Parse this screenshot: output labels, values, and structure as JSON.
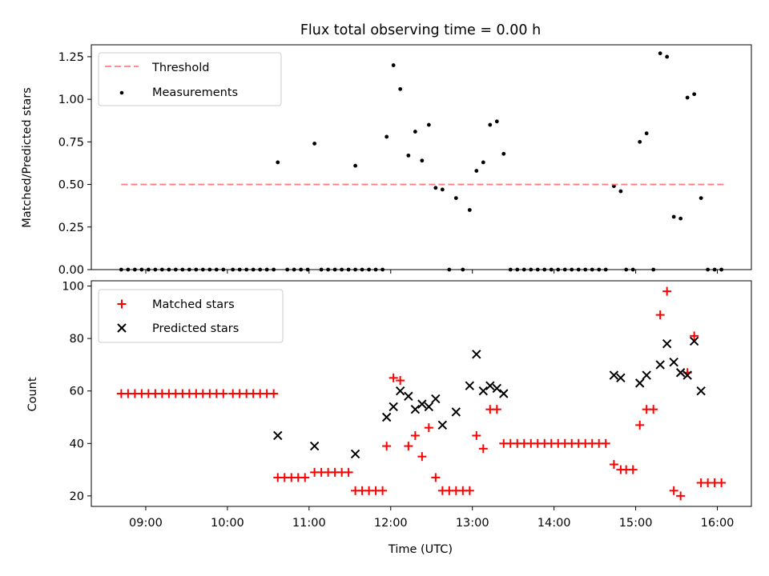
{
  "chart_data": [
    {
      "type": "scatter",
      "title": "Flux total observing time = 0.00 h",
      "ylabel": "Matched/Predicted stars",
      "xlabel": "",
      "xlim": [
        "08:20",
        "16:25"
      ],
      "ylim": [
        0,
        1.32
      ],
      "yticks": [
        0.0,
        0.25,
        0.5,
        0.75,
        1.0,
        1.25
      ],
      "yticklabels": [
        "0.00",
        "0.25",
        "0.50",
        "0.75",
        "1.00",
        "1.25"
      ],
      "grid": false,
      "legend": "top-left",
      "threshold": {
        "name": "Threshold",
        "value": 0.5,
        "x": [
          "08:42",
          "16:05"
        ],
        "color": "#ff7f7f",
        "style": "dashed"
      },
      "series": [
        {
          "name": "Measurements",
          "color": "#000000",
          "marker": "dot",
          "points": [
            [
              "08:42",
              0
            ],
            [
              "08:47",
              0
            ],
            [
              "08:52",
              0
            ],
            [
              "08:57",
              0
            ],
            [
              "09:02",
              0
            ],
            [
              "09:07",
              0
            ],
            [
              "09:12",
              0
            ],
            [
              "09:17",
              0
            ],
            [
              "09:22",
              0
            ],
            [
              "09:27",
              0
            ],
            [
              "09:32",
              0
            ],
            [
              "09:37",
              0
            ],
            [
              "09:42",
              0
            ],
            [
              "09:47",
              0
            ],
            [
              "09:52",
              0
            ],
            [
              "09:57",
              0
            ],
            [
              "10:04",
              0
            ],
            [
              "10:09",
              0
            ],
            [
              "10:14",
              0
            ],
            [
              "10:19",
              0
            ],
            [
              "10:24",
              0
            ],
            [
              "10:29",
              0
            ],
            [
              "10:34",
              0
            ],
            [
              "10:37",
              0.63
            ],
            [
              "10:44",
              0
            ],
            [
              "10:49",
              0
            ],
            [
              "10:54",
              0
            ],
            [
              "10:59",
              0
            ],
            [
              "11:04",
              0.74
            ],
            [
              "11:09",
              0
            ],
            [
              "11:14",
              0
            ],
            [
              "11:19",
              0
            ],
            [
              "11:24",
              0
            ],
            [
              "11:29",
              0
            ],
            [
              "11:34",
              0
            ],
            [
              "11:34",
              0.61
            ],
            [
              "11:39",
              0
            ],
            [
              "11:44",
              0
            ],
            [
              "11:49",
              0
            ],
            [
              "11:54",
              0
            ],
            [
              "11:57",
              0.78
            ],
            [
              "12:02",
              1.2
            ],
            [
              "12:07",
              1.06
            ],
            [
              "12:13",
              0.67
            ],
            [
              "12:18",
              0.81
            ],
            [
              "12:23",
              0.64
            ],
            [
              "12:28",
              0.85
            ],
            [
              "12:33",
              0.48
            ],
            [
              "12:38",
              0.47
            ],
            [
              "12:43",
              0
            ],
            [
              "12:48",
              0.42
            ],
            [
              "12:53",
              0
            ],
            [
              "12:58",
              0.35
            ],
            [
              "13:03",
              0.58
            ],
            [
              "13:08",
              0.63
            ],
            [
              "13:13",
              0.85
            ],
            [
              "13:18",
              0.87
            ],
            [
              "13:23",
              0.68
            ],
            [
              "13:28",
              0
            ],
            [
              "13:33",
              0
            ],
            [
              "13:38",
              0
            ],
            [
              "13:43",
              0
            ],
            [
              "13:48",
              0
            ],
            [
              "13:53",
              0
            ],
            [
              "13:58",
              0
            ],
            [
              "14:03",
              0
            ],
            [
              "14:08",
              0
            ],
            [
              "14:13",
              0
            ],
            [
              "14:18",
              0
            ],
            [
              "14:23",
              0
            ],
            [
              "14:28",
              0
            ],
            [
              "14:33",
              0
            ],
            [
              "14:38",
              0
            ],
            [
              "14:44",
              0.49
            ],
            [
              "14:49",
              0.46
            ],
            [
              "14:53",
              0
            ],
            [
              "14:58",
              0
            ],
            [
              "15:03",
              0.75
            ],
            [
              "15:08",
              0.8
            ],
            [
              "15:13",
              0
            ],
            [
              "15:18",
              1.27
            ],
            [
              "15:23",
              1.25
            ],
            [
              "15:28",
              0.31
            ],
            [
              "15:33",
              0.3
            ],
            [
              "15:38",
              1.01
            ],
            [
              "15:43",
              1.03
            ],
            [
              "15:48",
              0.42
            ],
            [
              "15:53",
              0
            ],
            [
              "15:58",
              0
            ],
            [
              "16:03",
              0
            ]
          ]
        }
      ]
    },
    {
      "type": "scatter",
      "title": "",
      "ylabel": "Count",
      "xlabel": "Time (UTC)",
      "xlim": [
        "08:20",
        "16:25"
      ],
      "ylim": [
        16,
        102
      ],
      "yticks": [
        20,
        40,
        60,
        80,
        100
      ],
      "yticklabels": [
        "20",
        "40",
        "60",
        "80",
        "100"
      ],
      "xticks": [
        "09:00",
        "10:00",
        "11:00",
        "12:00",
        "13:00",
        "14:00",
        "15:00",
        "16:00"
      ],
      "grid": false,
      "legend": "top-left",
      "series": [
        {
          "name": "Matched stars",
          "color": "#ff0000",
          "marker": "plus",
          "points": [
            [
              "08:42",
              59
            ],
            [
              "08:47",
              59
            ],
            [
              "08:52",
              59
            ],
            [
              "08:57",
              59
            ],
            [
              "09:02",
              59
            ],
            [
              "09:07",
              59
            ],
            [
              "09:12",
              59
            ],
            [
              "09:17",
              59
            ],
            [
              "09:22",
              59
            ],
            [
              "09:27",
              59
            ],
            [
              "09:32",
              59
            ],
            [
              "09:37",
              59
            ],
            [
              "09:42",
              59
            ],
            [
              "09:47",
              59
            ],
            [
              "09:52",
              59
            ],
            [
              "09:57",
              59
            ],
            [
              "10:04",
              59
            ],
            [
              "10:09",
              59
            ],
            [
              "10:14",
              59
            ],
            [
              "10:19",
              59
            ],
            [
              "10:24",
              59
            ],
            [
              "10:29",
              59
            ],
            [
              "10:34",
              59
            ],
            [
              "10:37",
              27
            ],
            [
              "10:42",
              27
            ],
            [
              "10:47",
              27
            ],
            [
              "10:52",
              27
            ],
            [
              "10:57",
              27
            ],
            [
              "11:04",
              29
            ],
            [
              "11:09",
              29
            ],
            [
              "11:14",
              29
            ],
            [
              "11:19",
              29
            ],
            [
              "11:24",
              29
            ],
            [
              "11:29",
              29
            ],
            [
              "11:34",
              22
            ],
            [
              "11:39",
              22
            ],
            [
              "11:44",
              22
            ],
            [
              "11:49",
              22
            ],
            [
              "11:54",
              22
            ],
            [
              "11:57",
              39
            ],
            [
              "12:02",
              65
            ],
            [
              "12:07",
              64
            ],
            [
              "12:13",
              39
            ],
            [
              "12:18",
              43
            ],
            [
              "12:23",
              35
            ],
            [
              "12:28",
              46
            ],
            [
              "12:33",
              27
            ],
            [
              "12:38",
              22
            ],
            [
              "12:43",
              22
            ],
            [
              "12:48",
              22
            ],
            [
              "12:53",
              22
            ],
            [
              "12:58",
              22
            ],
            [
              "13:03",
              43
            ],
            [
              "13:08",
              38
            ],
            [
              "13:13",
              53
            ],
            [
              "13:18",
              53
            ],
            [
              "13:23",
              40
            ],
            [
              "13:28",
              40
            ],
            [
              "13:33",
              40
            ],
            [
              "13:38",
              40
            ],
            [
              "13:43",
              40
            ],
            [
              "13:48",
              40
            ],
            [
              "13:53",
              40
            ],
            [
              "13:58",
              40
            ],
            [
              "14:03",
              40
            ],
            [
              "14:08",
              40
            ],
            [
              "14:13",
              40
            ],
            [
              "14:18",
              40
            ],
            [
              "14:23",
              40
            ],
            [
              "14:28",
              40
            ],
            [
              "14:33",
              40
            ],
            [
              "14:38",
              40
            ],
            [
              "14:44",
              32
            ],
            [
              "14:49",
              30
            ],
            [
              "14:53",
              30
            ],
            [
              "14:58",
              30
            ],
            [
              "15:03",
              47
            ],
            [
              "15:08",
              53
            ],
            [
              "15:13",
              53
            ],
            [
              "15:18",
              89
            ],
            [
              "15:23",
              98
            ],
            [
              "15:28",
              22
            ],
            [
              "15:33",
              20
            ],
            [
              "15:38",
              67
            ],
            [
              "15:43",
              81
            ],
            [
              "15:48",
              25
            ],
            [
              "15:53",
              25
            ],
            [
              "15:58",
              25
            ],
            [
              "16:03",
              25
            ]
          ]
        },
        {
          "name": "Predicted stars",
          "color": "#000000",
          "marker": "x",
          "points": [
            [
              "10:37",
              43
            ],
            [
              "11:04",
              39
            ],
            [
              "11:34",
              36
            ],
            [
              "11:57",
              50
            ],
            [
              "12:02",
              54
            ],
            [
              "12:07",
              60
            ],
            [
              "12:13",
              58
            ],
            [
              "12:18",
              53
            ],
            [
              "12:23",
              55
            ],
            [
              "12:28",
              54
            ],
            [
              "12:33",
              57
            ],
            [
              "12:38",
              47
            ],
            [
              "12:48",
              52
            ],
            [
              "12:58",
              62
            ],
            [
              "13:03",
              74
            ],
            [
              "13:08",
              60
            ],
            [
              "13:13",
              62
            ],
            [
              "13:18",
              61
            ],
            [
              "13:23",
              59
            ],
            [
              "14:44",
              66
            ],
            [
              "14:49",
              65
            ],
            [
              "15:03",
              63
            ],
            [
              "15:08",
              66
            ],
            [
              "15:18",
              70
            ],
            [
              "15:23",
              78
            ],
            [
              "15:28",
              71
            ],
            [
              "15:33",
              67
            ],
            [
              "15:38",
              66
            ],
            [
              "15:43",
              79
            ],
            [
              "15:48",
              60
            ]
          ]
        }
      ]
    }
  ]
}
